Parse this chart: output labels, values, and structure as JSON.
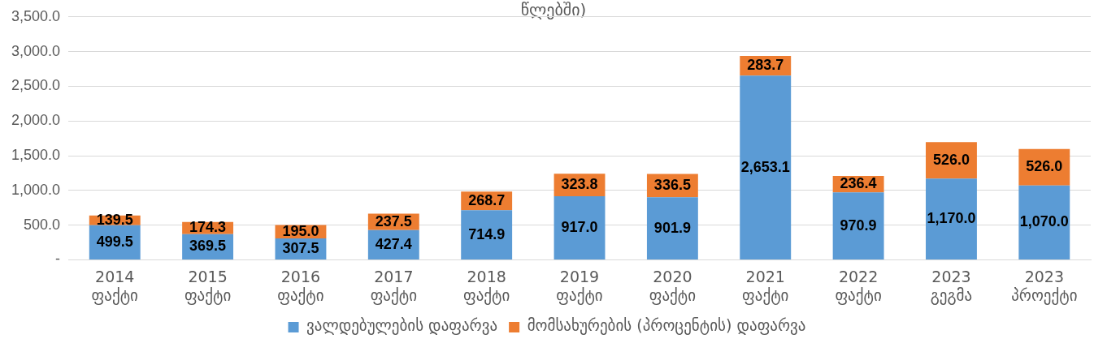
{
  "chart_data": {
    "type": "bar",
    "title": "წლებში)",
    "stacked": true,
    "categories": [
      "2014 ფაქტი",
      "2015 ფაქტი",
      "2016 ფაქტი",
      "2017 ფაქტი",
      "2018 ფაქტი",
      "2019 ფაქტი",
      "2020 ფაქტი",
      "2021 ფაქტი",
      "2022 ფაქტი",
      "2023 გეგმა",
      "2023 პროექტი"
    ],
    "series": [
      {
        "name": "ვალდებულების დაფარვა",
        "color": "#5b9bd5",
        "values": [
          499.5,
          369.5,
          307.5,
          427.4,
          714.9,
          917.0,
          901.9,
          2653.1,
          970.9,
          1170.0,
          1070.0
        ],
        "value_labels": [
          "499.5",
          "369.5",
          "307.5",
          "427.4",
          "714.9",
          "917.0",
          "901.9",
          "2,653.1",
          "970.9",
          "1,170.0",
          "1,070.0"
        ]
      },
      {
        "name": "მომსახურების (პროცენტის) დაფარვა",
        "color": "#ed7d31",
        "values": [
          139.5,
          174.3,
          195.0,
          237.5,
          268.7,
          323.8,
          336.5,
          283.7,
          236.4,
          526.0,
          526.0
        ],
        "value_labels": [
          "139.5",
          "174.3",
          "195.0",
          "237.5",
          "268.7",
          "323.8",
          "336.5",
          "283.7",
          "236.4",
          "526.0",
          "526.0"
        ]
      }
    ],
    "ylim": [
      0,
      3500
    ],
    "yticks": [
      {
        "value": 0,
        "label": "-"
      },
      {
        "value": 500,
        "label": "500.0"
      },
      {
        "value": 1000,
        "label": "1,000.0"
      },
      {
        "value": 1500,
        "label": "1,500.0"
      },
      {
        "value": 2000,
        "label": "2,000.0"
      },
      {
        "value": 2500,
        "label": "2,500.0"
      },
      {
        "value": 3000,
        "label": "3,000.0"
      },
      {
        "value": 3500,
        "label": "3,500.0"
      }
    ],
    "grid": "y",
    "legend": "bottom"
  }
}
